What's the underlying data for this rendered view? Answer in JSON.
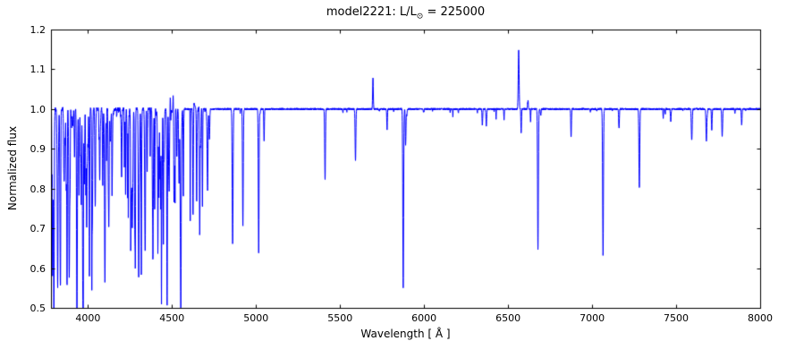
{
  "figure": {
    "background": "#ffffff",
    "axes_color": "#000000"
  },
  "chart_data": {
    "type": "line",
    "title_prefix": "model2221: L/L",
    "title_sub": "⊙",
    "title_suffix": " = 225000",
    "xlabel": "Wavelength [ Å ]",
    "ylabel": "Normalized flux",
    "xlim": [
      3780,
      8000
    ],
    "ylim": [
      0.5,
      1.2
    ],
    "xticks": [
      4000,
      4500,
      5000,
      5500,
      6000,
      6500,
      7000,
      7500,
      8000
    ],
    "yticks": [
      0.5,
      0.6,
      0.7,
      0.8,
      0.9,
      1.0,
      1.1,
      1.2
    ],
    "ytick_labels": [
      "0.5",
      "0.6",
      "0.7",
      "0.8",
      "0.9",
      "1.0",
      "1.1",
      "1.2"
    ],
    "line_color": "#0000ff",
    "baseline_flux": 1.0,
    "legend": null,
    "grid": false,
    "absorption_lines": [
      [
        3790,
        0.6,
        2.0
      ],
      [
        3798,
        0.66,
        2.0
      ],
      [
        3820,
        0.57,
        2.2
      ],
      [
        3835,
        0.62,
        2.2
      ],
      [
        3856,
        0.88,
        1.8
      ],
      [
        3871,
        0.8,
        1.8
      ],
      [
        3889,
        0.6,
        2.5
      ],
      [
        3920,
        0.88,
        1.8
      ],
      [
        3935,
        0.63,
        2.5
      ],
      [
        3956,
        0.88,
        1.8
      ],
      [
        3970,
        0.56,
        2.5
      ],
      [
        4009,
        0.9,
        1.8
      ],
      [
        4026,
        0.74,
        2.2
      ],
      [
        4070,
        0.82,
        2.2
      ],
      [
        4089,
        0.88,
        1.8
      ],
      [
        4101,
        0.56,
        2.5
      ],
      [
        4121,
        0.84,
        1.8
      ],
      [
        4144,
        0.86,
        1.8
      ],
      [
        4200,
        0.88,
        2.0
      ],
      [
        4233,
        0.93,
        1.8
      ],
      [
        4267,
        0.9,
        1.8
      ],
      [
        4340,
        0.65,
        2.5
      ],
      [
        4388,
        0.82,
        2.2
      ],
      [
        4438,
        0.93,
        1.8
      ],
      [
        4471,
        0.62,
        2.2
      ],
      [
        4481,
        0.84,
        1.8
      ],
      [
        4515,
        0.92,
        1.8
      ],
      [
        4542,
        0.81,
        2.2
      ],
      [
        4553,
        0.85,
        1.8
      ],
      [
        4568,
        0.9,
        1.8
      ],
      [
        4713,
        0.88,
        2.0
      ],
      [
        4861,
        0.66,
        2.5
      ],
      [
        4922,
        0.7,
        2.2
      ],
      [
        5016,
        0.64,
        2.2
      ],
      [
        5048,
        0.92,
        1.8
      ],
      [
        5411,
        0.82,
        2.2
      ],
      [
        5592,
        0.87,
        2.2
      ],
      [
        5780,
        0.95,
        1.8
      ],
      [
        5876,
        0.55,
        2.4
      ],
      [
        5890,
        0.92,
        1.8
      ],
      [
        6347,
        0.96,
        2.0
      ],
      [
        6371,
        0.97,
        2.0
      ],
      [
        6578,
        0.94,
        1.8
      ],
      [
        6678,
        0.67,
        2.4
      ],
      [
        6875,
        0.93,
        2.0
      ],
      [
        7065,
        0.63,
        2.4
      ],
      [
        7160,
        0.95,
        2.0
      ],
      [
        7281,
        0.8,
        2.4
      ],
      [
        7468,
        0.97,
        2.0
      ],
      [
        7593,
        0.92,
        2.6
      ],
      [
        7680,
        0.92,
        2.4
      ],
      [
        7712,
        0.95,
        2.0
      ],
      [
        7774,
        0.93,
        2.4
      ],
      [
        7890,
        0.96,
        2.0
      ]
    ],
    "emission_lines": [
      [
        4490,
        1.04,
        1.2
      ],
      [
        4507,
        1.035,
        1.2
      ],
      [
        4630,
        1.015,
        5.0
      ],
      [
        4660,
        1.025,
        1.5
      ],
      [
        5696,
        1.08,
        2.0
      ],
      [
        6563,
        1.15,
        2.5
      ],
      [
        6618,
        1.03,
        2.0
      ]
    ],
    "noise": {
      "seed": 42,
      "amp_blue": 0.006,
      "amp_red": 0.0025,
      "blue_limit": 4750
    },
    "minor_line_forest": {
      "seed": 7,
      "count": 150,
      "range": [
        3785,
        4750
      ],
      "max_depth": 0.3
    },
    "minor_line_forest_red": {
      "seed": 11,
      "count": 40,
      "range": [
        4750,
        8000
      ],
      "max_depth": 0.035
    }
  }
}
